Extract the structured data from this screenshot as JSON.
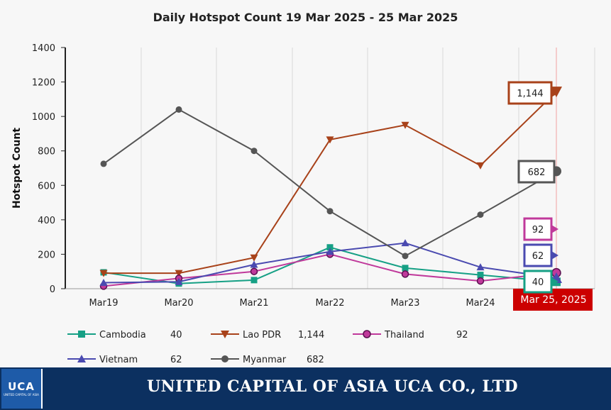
{
  "chart_data": {
    "type": "line",
    "title": "Daily Hotspot Count 19 Mar 2025 - 25 Mar 2025",
    "ylabel": "Hotspot Count",
    "xlabel": "",
    "categories": [
      "Mar19",
      "Mar20",
      "Mar21",
      "Mar22",
      "Mar23",
      "Mar24",
      "Mar 25, 2025"
    ],
    "ylim": [
      0,
      1400
    ],
    "yticks": [
      0,
      200,
      400,
      600,
      800,
      1000,
      1200,
      1400
    ],
    "grid": "vertical",
    "legend_position": "bottom",
    "series": [
      {
        "name": "Cambodia",
        "latest_label": "40",
        "color": "#16a085",
        "marker": "square",
        "values": [
          95,
          30,
          50,
          240,
          120,
          80,
          40
        ]
      },
      {
        "name": "Lao PDR",
        "latest_label": "1,144",
        "color": "#a8421a",
        "marker": "triangle-down",
        "values": [
          90,
          90,
          180,
          865,
          950,
          715,
          1144
        ]
      },
      {
        "name": "Thailand",
        "latest_label": "92",
        "color": "#c0399b",
        "marker": "circle",
        "values": [
          15,
          60,
          100,
          200,
          85,
          45,
          92
        ]
      },
      {
        "name": "Vietnam",
        "latest_label": "62",
        "color": "#4a4ab0",
        "marker": "triangle-up",
        "values": [
          35,
          40,
          140,
          215,
          265,
          125,
          62
        ]
      },
      {
        "name": "Myanmar",
        "latest_label": "682",
        "color": "#555555",
        "marker": "circle",
        "values": [
          725,
          1040,
          800,
          450,
          190,
          430,
          682
        ]
      }
    ]
  },
  "footer": {
    "company_name": "UNITED CAPITAL OF ASIA UCA CO., LTD",
    "logo_text": "UCA",
    "logo_subtext": "UNITED CAPITAL OF ASIA"
  }
}
